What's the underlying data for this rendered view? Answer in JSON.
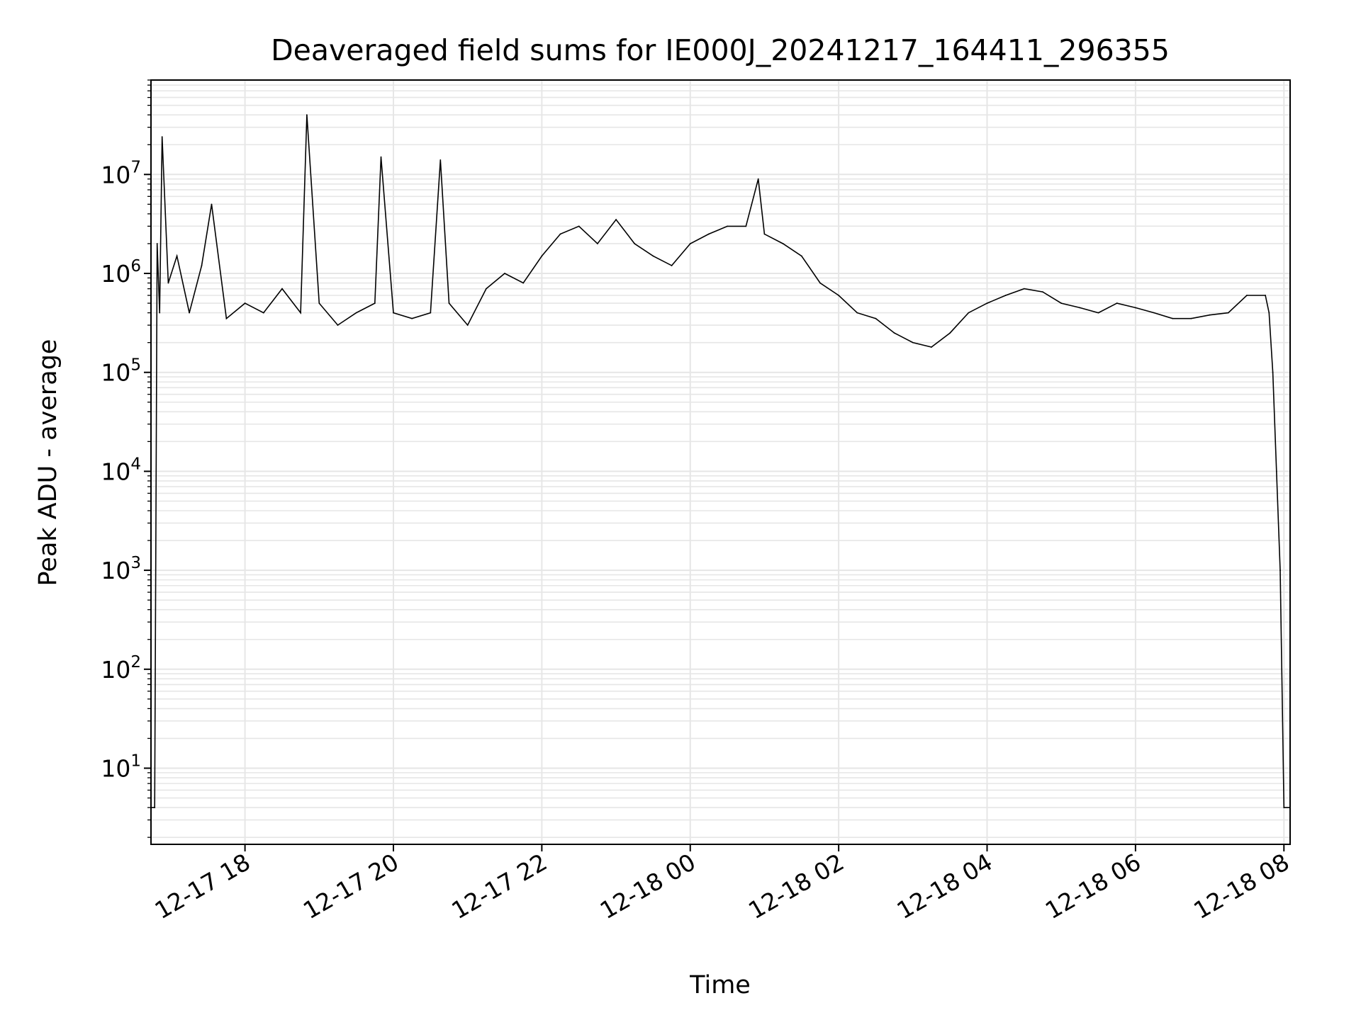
{
  "chart_data": {
    "type": "line",
    "title": "Deaveraged field sums for IE000J_20241217_164411_296355",
    "xlabel": "Time",
    "ylabel": "Peak ADU - average",
    "yscale": "log",
    "grid": true,
    "legend": "none",
    "line_color": "#000000",
    "grid_color": "#e6e6e6",
    "x_tick_labels": [
      "12-17 18",
      "12-17 20",
      "12-17 22",
      "12-18 00",
      "12-18 02",
      "12-18 04",
      "12-18 06",
      "12-18 08"
    ],
    "x_tick_times": [
      "2024-12-17T18:00",
      "2024-12-17T20:00",
      "2024-12-17T22:00",
      "2024-12-18T00:00",
      "2024-12-18T02:00",
      "2024-12-18T04:00",
      "2024-12-18T06:00",
      "2024-12-18T08:00"
    ],
    "xlim": [
      "2024-12-17T16:44",
      "2024-12-18T08:05"
    ],
    "y_tick_labels": [
      {
        "base": "10",
        "exp": "1",
        "value": 10
      },
      {
        "base": "10",
        "exp": "2",
        "value": 100
      },
      {
        "base": "10",
        "exp": "3",
        "value": 1000
      },
      {
        "base": "10",
        "exp": "4",
        "value": 10000
      },
      {
        "base": "10",
        "exp": "5",
        "value": 100000
      },
      {
        "base": "10",
        "exp": "6",
        "value": 1000000
      },
      {
        "base": "10",
        "exp": "7",
        "value": 10000000
      }
    ],
    "ylim": [
      1.7,
      90000000
    ],
    "series": [
      {
        "x": [
          "2024-12-17T16:44",
          "2024-12-17T16:47",
          "2024-12-17T16:49",
          "2024-12-17T16:51",
          "2024-12-17T16:53",
          "2024-12-17T16:58",
          "2024-12-17T17:05",
          "2024-12-17T17:15",
          "2024-12-17T17:25",
          "2024-12-17T17:33",
          "2024-12-17T17:45",
          "2024-12-17T18:00",
          "2024-12-17T18:15",
          "2024-12-17T18:30",
          "2024-12-17T18:45",
          "2024-12-17T18:50",
          "2024-12-17T19:00",
          "2024-12-17T19:15",
          "2024-12-17T19:30",
          "2024-12-17T19:45",
          "2024-12-17T19:50",
          "2024-12-17T20:00",
          "2024-12-17T20:15",
          "2024-12-17T20:30",
          "2024-12-17T20:38",
          "2024-12-17T20:45",
          "2024-12-17T21:00",
          "2024-12-17T21:15",
          "2024-12-17T21:30",
          "2024-12-17T21:45",
          "2024-12-17T22:00",
          "2024-12-17T22:15",
          "2024-12-17T22:30",
          "2024-12-17T22:45",
          "2024-12-17T23:00",
          "2024-12-17T23:15",
          "2024-12-17T23:30",
          "2024-12-17T23:45",
          "2024-12-18T00:00",
          "2024-12-18T00:15",
          "2024-12-18T00:30",
          "2024-12-18T00:45",
          "2024-12-18T00:55",
          "2024-12-18T01:00",
          "2024-12-18T01:15",
          "2024-12-18T01:30",
          "2024-12-18T01:45",
          "2024-12-18T02:00",
          "2024-12-18T02:15",
          "2024-12-18T02:30",
          "2024-12-18T02:45",
          "2024-12-18T03:00",
          "2024-12-18T03:15",
          "2024-12-18T03:30",
          "2024-12-18T03:45",
          "2024-12-18T04:00",
          "2024-12-18T04:15",
          "2024-12-18T04:30",
          "2024-12-18T04:45",
          "2024-12-18T05:00",
          "2024-12-18T05:15",
          "2024-12-18T05:30",
          "2024-12-18T05:45",
          "2024-12-18T06:00",
          "2024-12-18T06:15",
          "2024-12-18T06:30",
          "2024-12-18T06:45",
          "2024-12-18T07:00",
          "2024-12-18T07:15",
          "2024-12-18T07:30",
          "2024-12-18T07:45",
          "2024-12-18T07:48",
          "2024-12-18T07:51",
          "2024-12-18T07:54",
          "2024-12-18T07:57",
          "2024-12-18T08:00",
          "2024-12-18T08:05"
        ],
        "y": [
          4,
          4,
          2000000,
          400000,
          24000000,
          800000,
          1500000,
          400000,
          1200000,
          5000000,
          350000,
          500000,
          400000,
          700000,
          400000,
          40000000,
          500000,
          300000,
          400000,
          500000,
          15000000,
          400000,
          350000,
          400000,
          14000000,
          500000,
          300000,
          700000,
          1000000,
          800000,
          1500000,
          2500000,
          3000000,
          2000000,
          3500000,
          2000000,
          1500000,
          1200000,
          2000000,
          2500000,
          3000000,
          3000000,
          9000000,
          2500000,
          2000000,
          1500000,
          800000,
          600000,
          400000,
          350000,
          250000,
          200000,
          180000,
          250000,
          400000,
          500000,
          600000,
          700000,
          650000,
          500000,
          450000,
          400000,
          500000,
          450000,
          400000,
          350000,
          350000,
          380000,
          400000,
          600000,
          600000,
          400000,
          100000,
          10000,
          1000,
          4,
          4
        ]
      }
    ]
  }
}
